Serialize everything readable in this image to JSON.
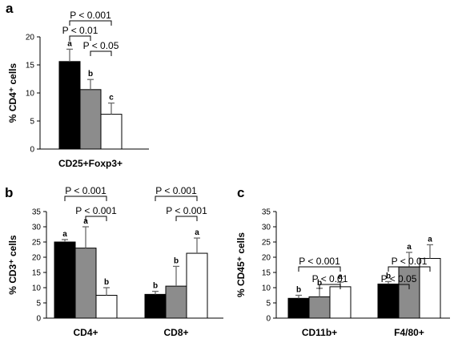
{
  "chart_data": [
    {
      "type": "bar",
      "panel": "a",
      "ylabel": "% CD4⁺ cells",
      "ylim": [
        0,
        20
      ],
      "yticks": [
        0,
        5,
        10,
        15,
        20
      ],
      "categories": [
        "CD25+Foxp3+"
      ],
      "series": [
        {
          "color": "#000000",
          "values": [
            15.6
          ],
          "errors": [
            2.2
          ],
          "letters": [
            "a"
          ]
        },
        {
          "color": "#8c8c8c",
          "values": [
            10.6
          ],
          "errors": [
            1.8
          ],
          "letters": [
            "b"
          ]
        },
        {
          "color": "#ffffff",
          "values": [
            6.2
          ],
          "errors": [
            2.0
          ],
          "letters": [
            "c"
          ]
        }
      ],
      "comparisons": [
        {
          "group": 0,
          "from": 0,
          "to": 2,
          "label": "P < 0.001",
          "level": 2
        },
        {
          "group": 0,
          "from": 0,
          "to": 1,
          "label": "P < 0.01",
          "level": 1
        },
        {
          "group": 0,
          "from": 1,
          "to": 2,
          "label": "P < 0.05",
          "level": 0
        }
      ]
    },
    {
      "type": "bar",
      "panel": "b",
      "ylabel": "% CD3⁺ cells",
      "ylim": [
        0,
        35
      ],
      "yticks": [
        0,
        5,
        10,
        15,
        20,
        25,
        30,
        35
      ],
      "categories": [
        "CD4+",
        "CD8+"
      ],
      "series": [
        {
          "color": "#000000",
          "values": [
            25.0,
            7.8
          ],
          "errors": [
            0.8,
            1.0
          ],
          "letters": [
            "a",
            "b"
          ]
        },
        {
          "color": "#8c8c8c",
          "values": [
            23.0,
            10.5
          ],
          "errors": [
            7.0,
            6.5
          ],
          "letters": [
            "a",
            "b"
          ]
        },
        {
          "color": "#ffffff",
          "values": [
            7.5,
            21.3
          ],
          "errors": [
            2.5,
            5.0
          ],
          "letters": [
            "b",
            "a"
          ]
        }
      ],
      "comparisons": [
        {
          "group": 0,
          "from": 0,
          "to": 2,
          "label": "P < 0.001",
          "level": 1
        },
        {
          "group": 0,
          "from": 1,
          "to": 2,
          "label": "P < 0.001",
          "level": 0
        },
        {
          "group": 1,
          "from": 0,
          "to": 2,
          "label": "P < 0.001",
          "level": 1
        },
        {
          "group": 1,
          "from": 1,
          "to": 2,
          "label": "P < 0.001",
          "level": 0
        }
      ]
    },
    {
      "type": "bar",
      "panel": "c",
      "ylabel": "% CD45⁺ cells",
      "ylim": [
        0,
        35
      ],
      "yticks": [
        0,
        5,
        10,
        15,
        20,
        25,
        30,
        35
      ],
      "categories": [
        "CD11b+",
        "F4/80+"
      ],
      "series": [
        {
          "color": "#000000",
          "values": [
            6.5,
            11.2
          ],
          "errors": [
            1.0,
            0.8
          ],
          "letters": [
            "b",
            "b"
          ]
        },
        {
          "color": "#8c8c8c",
          "values": [
            7.0,
            16.8
          ],
          "errors": [
            2.8,
            4.8
          ],
          "letters": [
            "b",
            "a"
          ]
        },
        {
          "color": "#ffffff",
          "values": [
            10.3,
            19.6
          ],
          "errors": [
            1.5,
            4.5
          ],
          "letters": [
            "a",
            "a"
          ]
        }
      ],
      "comparisons": [
        {
          "group": 0,
          "from": 0,
          "to": 2,
          "label": "P < 0.001",
          "level": 1
        },
        {
          "group": 0,
          "from": 1,
          "to": 2,
          "label": "P < 0.01",
          "level": 0
        },
        {
          "group": 1,
          "from": 0,
          "to": 2,
          "label": "P < 0.01",
          "level": 1
        },
        {
          "group": 1,
          "from": 0,
          "to": 1,
          "label": "P < 0.05",
          "level": 0
        }
      ]
    }
  ]
}
